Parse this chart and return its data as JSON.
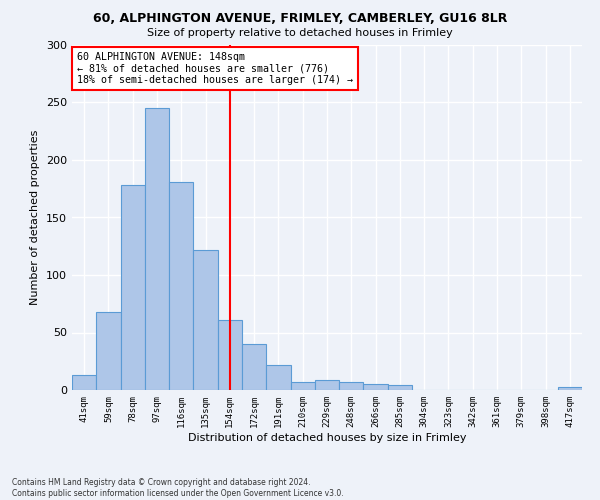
{
  "title1": "60, ALPHINGTON AVENUE, FRIMLEY, CAMBERLEY, GU16 8LR",
  "title2": "Size of property relative to detached houses in Frimley",
  "xlabel": "Distribution of detached houses by size in Frimley",
  "ylabel": "Number of detached properties",
  "bar_color": "#aec6e8",
  "bar_edge_color": "#5b9bd5",
  "bin_labels": [
    "41sqm",
    "59sqm",
    "78sqm",
    "97sqm",
    "116sqm",
    "135sqm",
    "154sqm",
    "172sqm",
    "191sqm",
    "210sqm",
    "229sqm",
    "248sqm",
    "266sqm",
    "285sqm",
    "304sqm",
    "323sqm",
    "342sqm",
    "361sqm",
    "379sqm",
    "398sqm",
    "417sqm"
  ],
  "bar_values": [
    13,
    68,
    178,
    245,
    181,
    122,
    61,
    40,
    22,
    7,
    9,
    7,
    5,
    4,
    0,
    0,
    0,
    0,
    0,
    0,
    3
  ],
  "property_line_x": 6.0,
  "annotation_text": "60 ALPHINGTON AVENUE: 148sqm\n← 81% of detached houses are smaller (776)\n18% of semi-detached houses are larger (174) →",
  "annotation_box_color": "white",
  "annotation_box_edge": "red",
  "vline_color": "red",
  "ylim": [
    0,
    300
  ],
  "yticks": [
    0,
    50,
    100,
    150,
    200,
    250,
    300
  ],
  "background_color": "#eef2f9",
  "grid_color": "white",
  "footnote": "Contains HM Land Registry data © Crown copyright and database right 2024.\nContains public sector information licensed under the Open Government Licence v3.0."
}
